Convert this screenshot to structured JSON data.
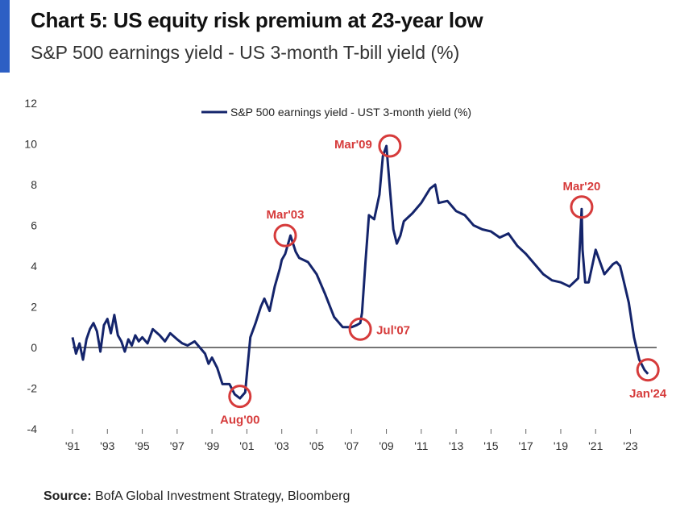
{
  "header": {
    "title": "Chart 5: US equity risk premium at 23-year low",
    "subtitle": "S&P 500 earnings yield - US 3-month T-bill yield (%)",
    "accent_color": "#2d5fc4"
  },
  "footer": {
    "source_label": "Source:",
    "source_text": " BofA Global Investment Strategy, Bloomberg"
  },
  "chart_data": {
    "type": "line",
    "title": "Chart 5: US equity risk premium at 23-year low",
    "subtitle": "S&P 500 earnings yield - US 3-month T-bill yield (%)",
    "xlabel": "",
    "ylabel": "",
    "xlim": [
      1991,
      2024.5
    ],
    "ylim": [
      -4,
      12
    ],
    "yticks": [
      -4,
      -2,
      0,
      2,
      4,
      6,
      8,
      10,
      12
    ],
    "xticks": [
      {
        "value": 1991,
        "label": "'91"
      },
      {
        "value": 1993,
        "label": "'93"
      },
      {
        "value": 1995,
        "label": "'95"
      },
      {
        "value": 1997,
        "label": "'97"
      },
      {
        "value": 1999,
        "label": "'99"
      },
      {
        "value": 2001,
        "label": "'01"
      },
      {
        "value": 2003,
        "label": "'03"
      },
      {
        "value": 2005,
        "label": "'05"
      },
      {
        "value": 2007,
        "label": "'07"
      },
      {
        "value": 2009,
        "label": "'09"
      },
      {
        "value": 2011,
        "label": "'11"
      },
      {
        "value": 2013,
        "label": "'13"
      },
      {
        "value": 2015,
        "label": "'15"
      },
      {
        "value": 2017,
        "label": "'17"
      },
      {
        "value": 2019,
        "label": "'19"
      },
      {
        "value": 2021,
        "label": "'21"
      },
      {
        "value": 2023,
        "label": "'23"
      }
    ],
    "grid": false,
    "zero_line": true,
    "legend_position": "top-center",
    "line_color": "#14246b",
    "annotation_color": "#d63b3b",
    "series": [
      {
        "name": "S&P 500 earnings yield - UST 3-month yield (%)",
        "x": [
          1991.0,
          1991.2,
          1991.4,
          1991.6,
          1991.8,
          1992.0,
          1992.2,
          1992.4,
          1992.6,
          1992.8,
          1993.0,
          1993.2,
          1993.4,
          1993.6,
          1993.8,
          1994.0,
          1994.2,
          1994.4,
          1994.6,
          1994.8,
          1995.0,
          1995.3,
          1995.6,
          1996.0,
          1996.3,
          1996.6,
          1997.0,
          1997.3,
          1997.6,
          1998.0,
          1998.3,
          1998.6,
          1998.8,
          1999.0,
          1999.3,
          1999.6,
          2000.0,
          2000.3,
          2000.6,
          2000.9,
          2001.0,
          2001.2,
          2001.5,
          2001.8,
          2002.0,
          2002.3,
          2002.6,
          2002.9,
          2003.0,
          2003.2,
          2003.5,
          2003.8,
          2004.0,
          2004.5,
          2005.0,
          2005.5,
          2006.0,
          2006.5,
          2007.0,
          2007.3,
          2007.5,
          2007.6,
          2007.8,
          2008.0,
          2008.3,
          2008.6,
          2008.8,
          2009.0,
          2009.2,
          2009.4,
          2009.6,
          2009.8,
          2010.0,
          2010.5,
          2011.0,
          2011.5,
          2011.8,
          2012.0,
          2012.5,
          2013.0,
          2013.5,
          2014.0,
          2014.5,
          2015.0,
          2015.5,
          2016.0,
          2016.5,
          2017.0,
          2017.5,
          2018.0,
          2018.5,
          2019.0,
          2019.5,
          2020.0,
          2020.2,
          2020.25,
          2020.4,
          2020.6,
          2021.0,
          2021.5,
          2022.0,
          2022.2,
          2022.4,
          2022.6,
          2022.9,
          2023.2,
          2023.5,
          2023.8,
          2024.0
        ],
        "values": [
          0.5,
          -0.3,
          0.2,
          -0.6,
          0.4,
          0.9,
          1.2,
          0.8,
          -0.2,
          1.1,
          1.4,
          0.7,
          1.6,
          0.6,
          0.3,
          -0.2,
          0.4,
          0.1,
          0.6,
          0.3,
          0.5,
          0.2,
          0.9,
          0.6,
          0.3,
          0.7,
          0.4,
          0.2,
          0.1,
          0.3,
          0.0,
          -0.3,
          -0.8,
          -0.5,
          -1.0,
          -1.8,
          -1.8,
          -2.3,
          -2.5,
          -2.2,
          -1.3,
          0.5,
          1.2,
          2.0,
          2.4,
          1.8,
          3.0,
          3.9,
          4.3,
          4.6,
          5.5,
          4.7,
          4.4,
          4.2,
          3.6,
          2.6,
          1.5,
          1.0,
          1.0,
          1.1,
          1.2,
          1.7,
          4.2,
          6.5,
          6.3,
          7.5,
          9.4,
          9.9,
          7.8,
          5.8,
          5.1,
          5.5,
          6.2,
          6.6,
          7.1,
          7.8,
          8.0,
          7.1,
          7.2,
          6.7,
          6.5,
          6.0,
          5.8,
          5.7,
          5.4,
          5.6,
          5.0,
          4.6,
          4.1,
          3.6,
          3.3,
          3.2,
          3.0,
          3.4,
          6.8,
          4.8,
          3.2,
          3.2,
          4.8,
          3.6,
          4.1,
          4.2,
          4.0,
          3.3,
          2.2,
          0.5,
          -0.6,
          -1.1,
          -1.3
        ]
      }
    ],
    "annotations": [
      {
        "label": "Aug'00",
        "x": 2000.6,
        "y": -2.4,
        "label_pos": "below"
      },
      {
        "label": "Mar'03",
        "x": 2003.2,
        "y": 5.5,
        "label_pos": "above"
      },
      {
        "label": "Jul'07",
        "x": 2007.5,
        "y": 0.9,
        "label_pos": "right"
      },
      {
        "label": "Mar'09",
        "x": 2009.2,
        "y": 9.9,
        "label_pos": "left"
      },
      {
        "label": "Mar'20",
        "x": 2020.2,
        "y": 6.9,
        "label_pos": "above"
      },
      {
        "label": "Jan'24",
        "x": 2024.0,
        "y": -1.1,
        "label_pos": "below"
      }
    ]
  }
}
